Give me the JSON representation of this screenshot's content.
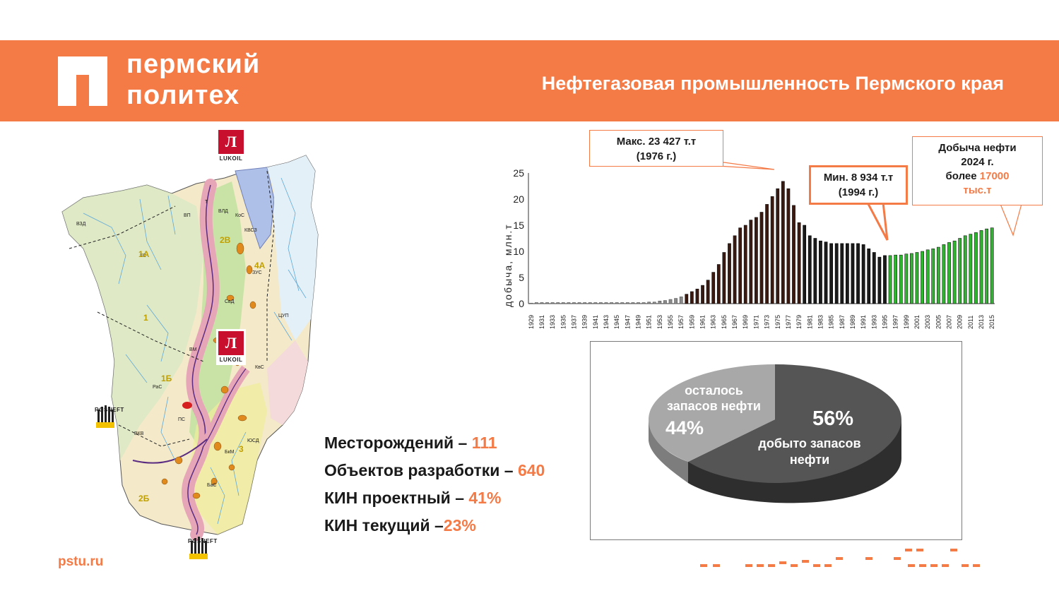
{
  "header": {
    "logo_line1": "пермский",
    "logo_line2": "политех",
    "title": "Нефтегазовая промышленность Пермского края"
  },
  "map": {
    "logos": {
      "lukoil_caption": "LUKOIL",
      "rosneft_caption": "ROSNEFT"
    },
    "zone_labels": [
      "ВЗД",
      "КС",
      "ВП",
      "Т",
      "ВЛД",
      "КоС",
      "КВСЗ",
      "ЗУС",
      "СвД",
      "ЦУП",
      "ВМ",
      "КвС",
      "РаС",
      "ПС",
      "ВКВ",
      "БкМ",
      "ЮСД",
      "БаС",
      "1",
      "2В",
      "1А",
      "1Б",
      "2Б",
      "3",
      "4А"
    ],
    "colors": {
      "land": "#f4e9c8",
      "green_zone": "#c9e3a7",
      "blue_zone": "#aebfe8",
      "pink_belt": "#e7a6b8",
      "belt_outline": "#5b2d82",
      "river": "#5fa9d8",
      "fields": "#e08a1e"
    }
  },
  "stats": [
    {
      "label": "Месторождений – ",
      "value": "111"
    },
    {
      "label": "Объектов разработки – ",
      "value": "640"
    },
    {
      "label": "КИН проектный – ",
      "value": "41%"
    },
    {
      "label": "КИН текущий –",
      "value": "23%"
    }
  ],
  "site": "pstu.ru",
  "chart_data": [
    {
      "type": "bar",
      "title": "",
      "xlabel": "",
      "ylabel": "добыча, млн.т",
      "ylim": [
        0,
        25
      ],
      "yticks": [
        0,
        5,
        10,
        15,
        20,
        25
      ],
      "x_start": 1929,
      "x_end": 2015,
      "x_tick_labels": [
        "1929",
        "1931",
        "1933",
        "1935",
        "1937",
        "1939",
        "1941",
        "1943",
        "1945",
        "1947",
        "1949",
        "1951",
        "1953",
        "1955",
        "1957",
        "1959",
        "1961",
        "1963",
        "1965",
        "1967",
        "1969",
        "1971",
        "1973",
        "1975",
        "1977",
        "1979",
        "1981",
        "1983",
        "1985",
        "1987",
        "1989",
        "1991",
        "1993",
        "1995",
        "1997",
        "1999",
        "2001",
        "2003",
        "2005",
        "2007",
        "2009",
        "2011",
        "2013",
        "2015"
      ],
      "x": [
        1929,
        1930,
        1931,
        1932,
        1933,
        1934,
        1935,
        1936,
        1937,
        1938,
        1939,
        1940,
        1941,
        1942,
        1943,
        1944,
        1945,
        1946,
        1947,
        1948,
        1949,
        1950,
        1951,
        1952,
        1953,
        1954,
        1955,
        1956,
        1957,
        1958,
        1959,
        1960,
        1961,
        1962,
        1963,
        1964,
        1965,
        1966,
        1967,
        1968,
        1969,
        1970,
        1971,
        1972,
        1973,
        1974,
        1975,
        1976,
        1977,
        1978,
        1979,
        1980,
        1981,
        1982,
        1983,
        1984,
        1985,
        1986,
        1987,
        1988,
        1989,
        1990,
        1991,
        1992,
        1993,
        1994,
        1995,
        1996,
        1997,
        1998,
        1999,
        2000,
        2001,
        2002,
        2003,
        2004,
        2005,
        2006,
        2007,
        2008,
        2009,
        2010,
        2011,
        2012,
        2013,
        2014,
        2015
      ],
      "values": [
        0.1,
        0.2,
        0.2,
        0.2,
        0.2,
        0.2,
        0.2,
        0.2,
        0.2,
        0.2,
        0.2,
        0.2,
        0.2,
        0.2,
        0.2,
        0.2,
        0.2,
        0.2,
        0.2,
        0.2,
        0.2,
        0.2,
        0.3,
        0.3,
        0.5,
        0.6,
        0.8,
        1.0,
        1.3,
        1.8,
        2.3,
        2.8,
        3.5,
        4.5,
        6.0,
        7.5,
        9.8,
        11.5,
        13.0,
        14.5,
        15.0,
        16.0,
        16.5,
        17.5,
        19.0,
        20.5,
        22.0,
        23.4,
        22.0,
        18.8,
        15.5,
        15.0,
        13.0,
        12.5,
        12.0,
        11.8,
        11.5,
        11.5,
        11.5,
        11.5,
        11.5,
        11.5,
        11.3,
        10.5,
        9.8,
        8.9,
        9.2,
        9.2,
        9.3,
        9.3,
        9.5,
        9.6,
        9.8,
        10.0,
        10.3,
        10.5,
        10.8,
        11.3,
        11.7,
        12.0,
        12.5,
        13.0,
        13.3,
        13.6,
        14.0,
        14.3,
        14.5
      ],
      "series_colors": {
        "phase1": "#8a8a8a",
        "phase2": "#3a1a10",
        "phase3": "#1a1a1a",
        "phase4": "#2fb52f"
      }
    },
    {
      "type": "pie",
      "categories": [
        "осталось запасов нефти",
        "добыто запасов нефти"
      ],
      "values": [
        44,
        56
      ],
      "slice_labels": [
        "44%",
        "56%"
      ],
      "colors": [
        "#a8a8a8",
        "#555555"
      ]
    }
  ],
  "callouts": {
    "max": {
      "line1": "Макс. 23 427 т.т",
      "line2": "(1976 г.)"
    },
    "min": {
      "line1": "Мин. 8 934 т.т",
      "line2": "(1994 г.)"
    },
    "production": {
      "line1": "Добыча нефти",
      "line2": "2024 г.",
      "line3": "более ",
      "value": "17000",
      "unit": "тыс.т"
    }
  },
  "pie_text": {
    "left_label_line1": "осталось",
    "left_label_line2": "запасов нефти",
    "left_pct": "44%",
    "right_pct": "56%",
    "right_label_line1": "добыто запасов",
    "right_label_line2": "нефти"
  },
  "colors": {
    "accent": "#f47a46"
  }
}
